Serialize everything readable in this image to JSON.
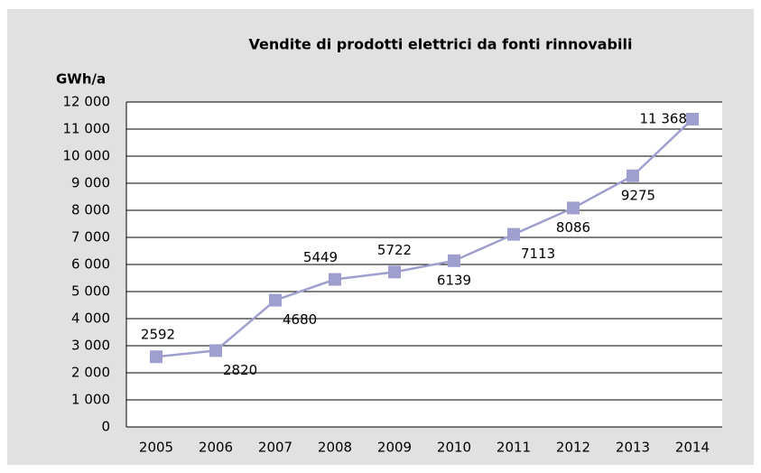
{
  "chart_data": {
    "type": "line",
    "title": "Vendite di prodotti elettrici da fonti rinnovabili",
    "y_label": "GWh/a",
    "categories": [
      "2005",
      "2006",
      "2007",
      "2008",
      "2009",
      "2010",
      "2011",
      "2012",
      "2013",
      "2014"
    ],
    "series": [
      {
        "name": "Vendite",
        "color": "#9f9fcf",
        "values": [
          2592,
          2820,
          4680,
          5449,
          5722,
          6139,
          7113,
          8086,
          9275,
          11368
        ],
        "value_labels": [
          "2592",
          "2820",
          "4680",
          "5449",
          "5722",
          "6139",
          "7113",
          "8086",
          "9275",
          "11 368"
        ]
      }
    ],
    "ylim": [
      0,
      12000
    ],
    "yticks": [
      0,
      {
        "value": 1000,
        "label": "1 000"
      },
      {
        "value": 2000,
        "label": "2 000"
      },
      {
        "value": 3000,
        "label": "3 000"
      },
      {
        "value": 4000,
        "label": "4 000"
      },
      {
        "value": 5000,
        "label": "5 000"
      },
      {
        "value": 6000,
        "label": "6 000"
      },
      {
        "value": 7000,
        "label": "7 000"
      },
      {
        "value": 8000,
        "label": "8 000"
      },
      {
        "value": 9000,
        "label": "9 000"
      },
      {
        "value": 10000,
        "label": "10 000"
      },
      {
        "value": 11000,
        "label": "11 000"
      },
      {
        "value": 12000,
        "label": "12 000"
      }
    ],
    "grid": true
  }
}
